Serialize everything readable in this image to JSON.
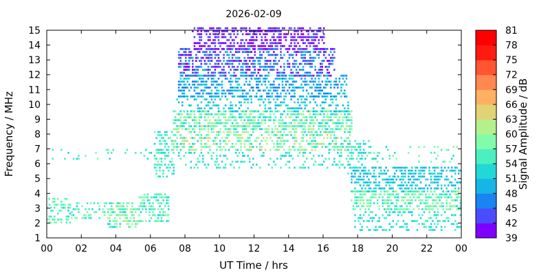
{
  "chart_data": {
    "type": "heatmap",
    "title": "2026-02-09",
    "xlabel": "UT Time / hrs",
    "ylabel": "Frequency / MHz",
    "xlim": [
      0,
      24
    ],
    "ylim": [
      1,
      15
    ],
    "x_ticks": [
      "00",
      "02",
      "04",
      "06",
      "08",
      "10",
      "12",
      "14",
      "16",
      "18",
      "20",
      "22",
      "00"
    ],
    "y_ticks": [
      "1",
      "2",
      "3",
      "4",
      "5",
      "6",
      "7",
      "8",
      "9",
      "10",
      "11",
      "12",
      "13",
      "14",
      "15"
    ],
    "colorbar": {
      "label": "Signal Amplitude / dB",
      "range": [
        39,
        81
      ],
      "step": 3,
      "ticks": [
        "39",
        "42",
        "45",
        "48",
        "51",
        "54",
        "57",
        "60",
        "63",
        "66",
        "69",
        "72",
        "75",
        "78",
        "81"
      ],
      "colors": [
        "#8000ff",
        "#4c4cff",
        "#1a84f0",
        "#17b4e7",
        "#22d7d7",
        "#4cf0c0",
        "#80fcaa",
        "#b4f08c",
        "#e1d373",
        "#ffb060",
        "#ff8850",
        "#ff5530",
        "#ff1a10",
        "#ff0000"
      ]
    },
    "regions": [
      {
        "t": [
          0.0,
          1.4
        ],
        "f": [
          1.9,
          3.6
        ],
        "a": [
          53,
          60
        ],
        "d": 0.42
      },
      {
        "t": [
          1.4,
          3.5
        ],
        "f": [
          2.2,
          3.4
        ],
        "a": [
          53,
          60
        ],
        "d": 0.42
      },
      {
        "t": [
          3.5,
          5.3
        ],
        "f": [
          1.6,
          3.4
        ],
        "a": [
          53,
          62
        ],
        "d": 0.5
      },
      {
        "t": [
          5.3,
          7.0
        ],
        "f": [
          2.0,
          4.0
        ],
        "a": [
          52,
          60
        ],
        "d": 0.5
      },
      {
        "t": [
          0.0,
          6.0
        ],
        "f": [
          6.2,
          7.0
        ],
        "a": [
          52,
          58
        ],
        "d": 0.09
      },
      {
        "t": [
          6.2,
          7.3
        ],
        "f": [
          5.0,
          8.2
        ],
        "a": [
          51,
          58
        ],
        "d": 0.45
      },
      {
        "t": [
          7.3,
          17.6
        ],
        "f": [
          5.6,
          6.8
        ],
        "a": [
          51,
          57
        ],
        "d": 0.22
      },
      {
        "t": [
          7.3,
          17.6
        ],
        "f": [
          6.8,
          8.2
        ],
        "a": [
          52,
          64
        ],
        "d": 0.5
      },
      {
        "t": [
          7.3,
          17.6
        ],
        "f": [
          8.2,
          9.4
        ],
        "a": [
          52,
          62
        ],
        "d": 0.62
      },
      {
        "t": [
          7.5,
          17.4
        ],
        "f": [
          9.4,
          10.4
        ],
        "a": [
          48,
          54
        ],
        "d": 0.35
      },
      {
        "t": [
          7.6,
          17.3
        ],
        "f": [
          10.4,
          11.8
        ],
        "a": [
          45,
          52
        ],
        "d": 0.5
      },
      {
        "t": [
          7.6,
          16.6
        ],
        "f": [
          11.8,
          13.6
        ],
        "a": [
          40,
          50
        ],
        "d": 0.55
      },
      {
        "t": [
          8.4,
          16.0
        ],
        "f": [
          13.6,
          15.0
        ],
        "a": [
          39,
          44
        ],
        "d": 0.55
      },
      {
        "t": [
          17.4,
          18.7
        ],
        "f": [
          5.2,
          7.6
        ],
        "a": [
          51,
          57
        ],
        "d": 0.3
      },
      {
        "t": [
          17.6,
          24.0
        ],
        "f": [
          6.0,
          7.2
        ],
        "a": [
          52,
          60
        ],
        "d": 0.1
      },
      {
        "t": [
          17.6,
          24.0
        ],
        "f": [
          4.0,
          5.8
        ],
        "a": [
          48,
          54
        ],
        "d": 0.5
      },
      {
        "t": [
          17.6,
          24.0
        ],
        "f": [
          2.8,
          4.2
        ],
        "a": [
          53,
          61
        ],
        "d": 0.55
      },
      {
        "t": [
          17.8,
          24.0
        ],
        "f": [
          1.4,
          2.8
        ],
        "a": [
          51,
          57
        ],
        "d": 0.3
      }
    ]
  }
}
